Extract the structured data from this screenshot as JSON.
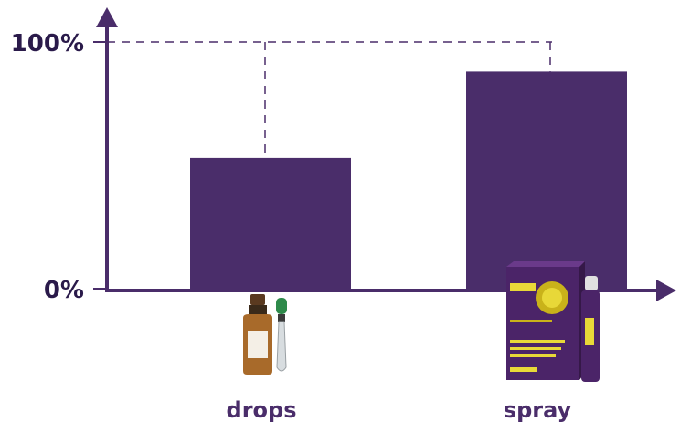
{
  "chart_data": {
    "type": "bar",
    "categories": [
      "drops",
      "spray"
    ],
    "values": [
      53,
      88
    ],
    "ylim": [
      0,
      100
    ],
    "ytick_labels": [
      "0%",
      "100%"
    ],
    "grid": false,
    "colors": {
      "bar": "#4a2d6a",
      "axis": "#4a2d6a",
      "guide": "#4a2d6a"
    },
    "icons": [
      "dropper-bottle-icon",
      "sund3-spray-box-icon"
    ]
  }
}
